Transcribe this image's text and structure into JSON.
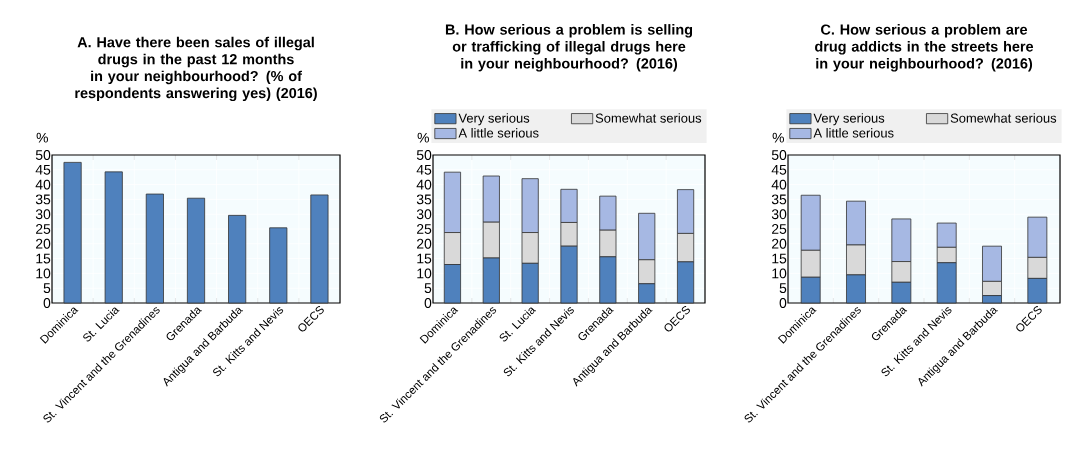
{
  "chart_data": [
    {
      "type": "bar",
      "title": "A. Have there been sales of illegal drugs in the past 12 months in your neighbourhood? (% of respondents answering yes) (2016)",
      "ylabel": "%",
      "categories": [
        "Dominica",
        "St. Lucia",
        "St. Vincent and the Grenadines",
        "Grenada",
        "Antigua and Barbuda",
        "St. Kitts and Nevis",
        "OECS"
      ],
      "values": [
        47.5,
        44.3,
        36.8,
        35.4,
        29.6,
        25.4,
        36.5
      ],
      "color": "#4f81bd",
      "ylim": [
        0,
        50
      ],
      "yticks": [
        0,
        5,
        10,
        15,
        20,
        25,
        30,
        35,
        40,
        45,
        50
      ],
      "grid": true,
      "legend": false
    },
    {
      "type": "bar",
      "stacked": true,
      "title": "B. How serious a problem is selling or trafficking of illegal drugs here in your neighbourhood? (2016)",
      "ylabel": "%",
      "categories": [
        "Dominica",
        "St. Vincent and the Grenadines",
        "St. Lucia",
        "St. Kitts and Nevis",
        "Grenada",
        "Antigua and Barbuda",
        "OECS"
      ],
      "series": [
        {
          "name": "Very serious",
          "color": "#4f81bd",
          "values": [
            13.0,
            15.2,
            13.4,
            19.2,
            15.6,
            6.5,
            13.9
          ]
        },
        {
          "name": "Somewhat serious",
          "color": "#d9d9d9",
          "values": [
            10.8,
            12.1,
            10.4,
            8.0,
            9.0,
            8.1,
            9.6
          ]
        },
        {
          "name": "A little serious",
          "color": "#a6b8e3",
          "values": [
            20.4,
            15.6,
            18.2,
            11.2,
            11.5,
            15.7,
            14.8
          ]
        }
      ],
      "ylim": [
        0,
        50
      ],
      "yticks": [
        0,
        5,
        10,
        15,
        20,
        25,
        30,
        35,
        40,
        45,
        50
      ],
      "grid": true,
      "legend": "top"
    },
    {
      "type": "bar",
      "stacked": true,
      "title": "C. How serious a problem are drug addicts in the streets here in your neighbourhood? (2016)",
      "ylabel": "%",
      "categories": [
        "Dominica",
        "St. Vincent and the Grenadines",
        "Grenada",
        "St. Kitts and Nevis",
        "Antigua and Barbuda",
        "OECS"
      ],
      "series": [
        {
          "name": "Very serious",
          "color": "#4f81bd",
          "values": [
            8.7,
            9.5,
            7.0,
            13.6,
            2.5,
            8.3
          ]
        },
        {
          "name": "Somewhat serious",
          "color": "#d9d9d9",
          "values": [
            9.1,
            10.1,
            7.0,
            5.2,
            4.8,
            7.1
          ]
        },
        {
          "name": "A little serious",
          "color": "#a6b8e3",
          "values": [
            18.6,
            14.8,
            14.4,
            8.2,
            11.9,
            13.6
          ]
        }
      ],
      "ylim": [
        0,
        50
      ],
      "yticks": [
        0,
        5,
        10,
        15,
        20,
        25,
        30,
        35,
        40,
        45,
        50
      ],
      "grid": true,
      "legend": "top"
    }
  ]
}
